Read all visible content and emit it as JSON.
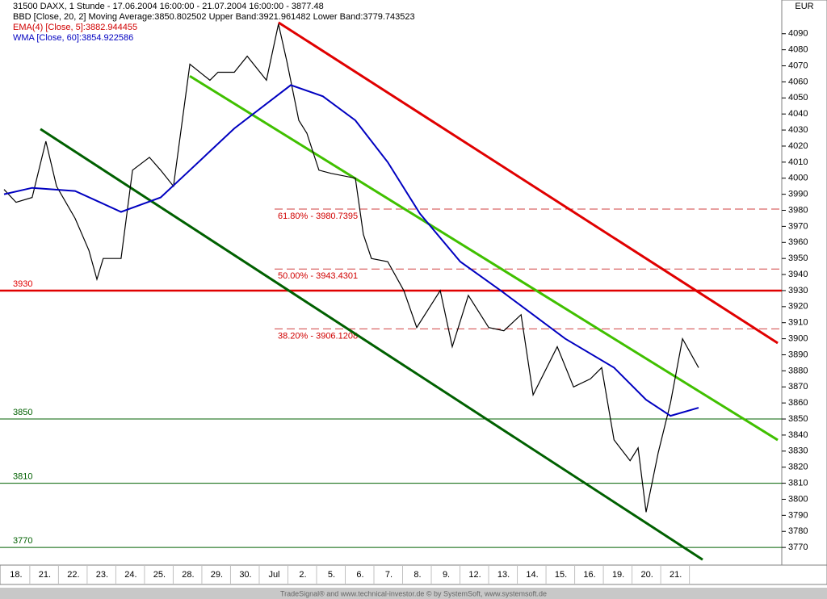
{
  "chart_data": {
    "type": "line",
    "title": "31500 DAXX, 1 Stunde - 17.06.2004 16:00:00 - 21.07.2004 16:00:00 - 3877.48",
    "indicators": [
      {
        "text": "BBD [Close, 20, 2] Moving Average:3850.802502 Upper Band:3921.961482 Lower Band:3779.743523",
        "color": "#000000"
      },
      {
        "text": "EMA(4) [Close, 5]:3882.944455",
        "color": "#d00000"
      },
      {
        "text": "WMA [Close, 60]:3854.922586",
        "color": "#0000c0"
      }
    ],
    "currency": "EUR",
    "footer": "TradeSignal® and www.technical-investor.de © by SystemSoft, www.systemsoft.de",
    "series": [
      {
        "color": "#000000",
        "x": [
          -0.42,
          0,
          0.56,
          1.04,
          1.41,
          2.06,
          2.54,
          2.82,
          3.04,
          3.66,
          4.06,
          4.65,
          5.04,
          5.49,
          6.06,
          6.76,
          7.04,
          7.61,
          8.06,
          8.73,
          9.15,
          9.44,
          9.86,
          10.14,
          10.56,
          10.99,
          11.83,
          12.11,
          12.39,
          12.96,
          13.52,
          13.97,
          14.79,
          15.21,
          15.77,
          16.48,
          17.01,
          17.61,
          18.03,
          18.87,
          19.44,
          20.03,
          20.42,
          20.85,
          21.41,
          21.69,
          21.97,
          22.39,
          22.82,
          23.24,
          23.8
        ],
        "values": [
          3993,
          3985,
          3988,
          4023,
          3995,
          3975,
          3955,
          3937,
          3950,
          3950,
          4005,
          4013,
          4005,
          3995,
          4071,
          4061,
          4066,
          4066,
          4076,
          4061,
          4096,
          4073,
          4036,
          4028,
          4005,
          4003,
          4000,
          3965,
          3950,
          3948,
          3930,
          3907,
          3930,
          3895,
          3927,
          3907,
          3905,
          3915,
          3865,
          3895,
          3870,
          3875,
          3882,
          3837,
          3824,
          3832,
          3792,
          3829,
          3860,
          3900,
          3882
        ]
      },
      {
        "name": "WMA [Close, 60]:3854.922586",
        "color": "#0000c0",
        "x": [
          -0.42,
          0.56,
          2.06,
          3.66,
          5.04,
          6.06,
          7.61,
          9.58,
          10.7,
          11.83,
          12.96,
          14.08,
          15.49,
          16.9,
          18.03,
          19.15,
          20.85,
          21.97,
          22.82,
          23.8
        ],
        "values": [
          3990,
          3994,
          3992,
          3979,
          3988,
          4005,
          4031,
          4058,
          4051,
          4036,
          4010,
          3978,
          3948,
          3930,
          3915,
          3900,
          3882,
          3862,
          3852,
          3857
        ]
      }
    ],
    "levels": [
      {
        "value": 3930,
        "color": "#e00000"
      },
      {
        "value": 3850,
        "color": "#006000"
      },
      {
        "value": 3810,
        "color": "#006000"
      },
      {
        "value": 3770,
        "color": "#006000"
      }
    ],
    "fib_levels": [
      {
        "label": "61.80% - 3980.7395",
        "value": 3980.7395
      },
      {
        "label": "50.00% - 3943.4301",
        "value": 3943.4301
      },
      {
        "label": "38.20% - 3906.1208",
        "value": 3906.1208
      }
    ],
    "trend_lines": [
      {
        "color": "#e00000",
        "x": [
          9.15,
          26.56
        ],
        "values": [
          4097,
          3897.3
        ]
      },
      {
        "color": "#40c000",
        "x": [
          6.06,
          26.56
        ],
        "values": [
          4063.6,
          3836.9
        ]
      },
      {
        "color": "#006000",
        "x": [
          0.85,
          23.94
        ],
        "values": [
          4030.6,
          3762.4
        ]
      }
    ],
    "xlim": [
      -0.56,
      26.7
    ],
    "ylim": [
      3759,
      4111
    ],
    "yticks": [
      3770,
      3780,
      3790,
      3800,
      3810,
      3820,
      3830,
      3840,
      3850,
      3860,
      3870,
      3880,
      3890,
      3900,
      3910,
      3920,
      3930,
      3940,
      3950,
      3960,
      3970,
      3980,
      3990,
      4000,
      4010,
      4020,
      4030,
      4040,
      4050,
      4060,
      4070,
      4080,
      4090
    ],
    "xticks": [
      {
        "value": 0,
        "label": "18."
      },
      {
        "value": 1,
        "label": "21."
      },
      {
        "value": 2,
        "label": "22."
      },
      {
        "value": 3,
        "label": "23."
      },
      {
        "value": 4,
        "label": "24."
      },
      {
        "value": 5,
        "label": "25."
      },
      {
        "value": 6,
        "label": "28."
      },
      {
        "value": 7,
        "label": "29."
      },
      {
        "value": 8,
        "label": "30."
      },
      {
        "value": 9,
        "label": "Jul"
      },
      {
        "value": 10,
        "label": "2."
      },
      {
        "value": 11,
        "label": "5."
      },
      {
        "value": 12,
        "label": "6."
      },
      {
        "value": 13,
        "label": "7."
      },
      {
        "value": 14,
        "label": "8."
      },
      {
        "value": 15,
        "label": "9."
      },
      {
        "value": 16,
        "label": "12."
      },
      {
        "value": 17,
        "label": "13."
      },
      {
        "value": 18,
        "label": "14."
      },
      {
        "value": 19,
        "label": "15."
      },
      {
        "value": 20,
        "label": "16."
      },
      {
        "value": 21,
        "label": "19."
      },
      {
        "value": 22,
        "label": "20."
      },
      {
        "value": 23,
        "label": "21."
      }
    ]
  }
}
